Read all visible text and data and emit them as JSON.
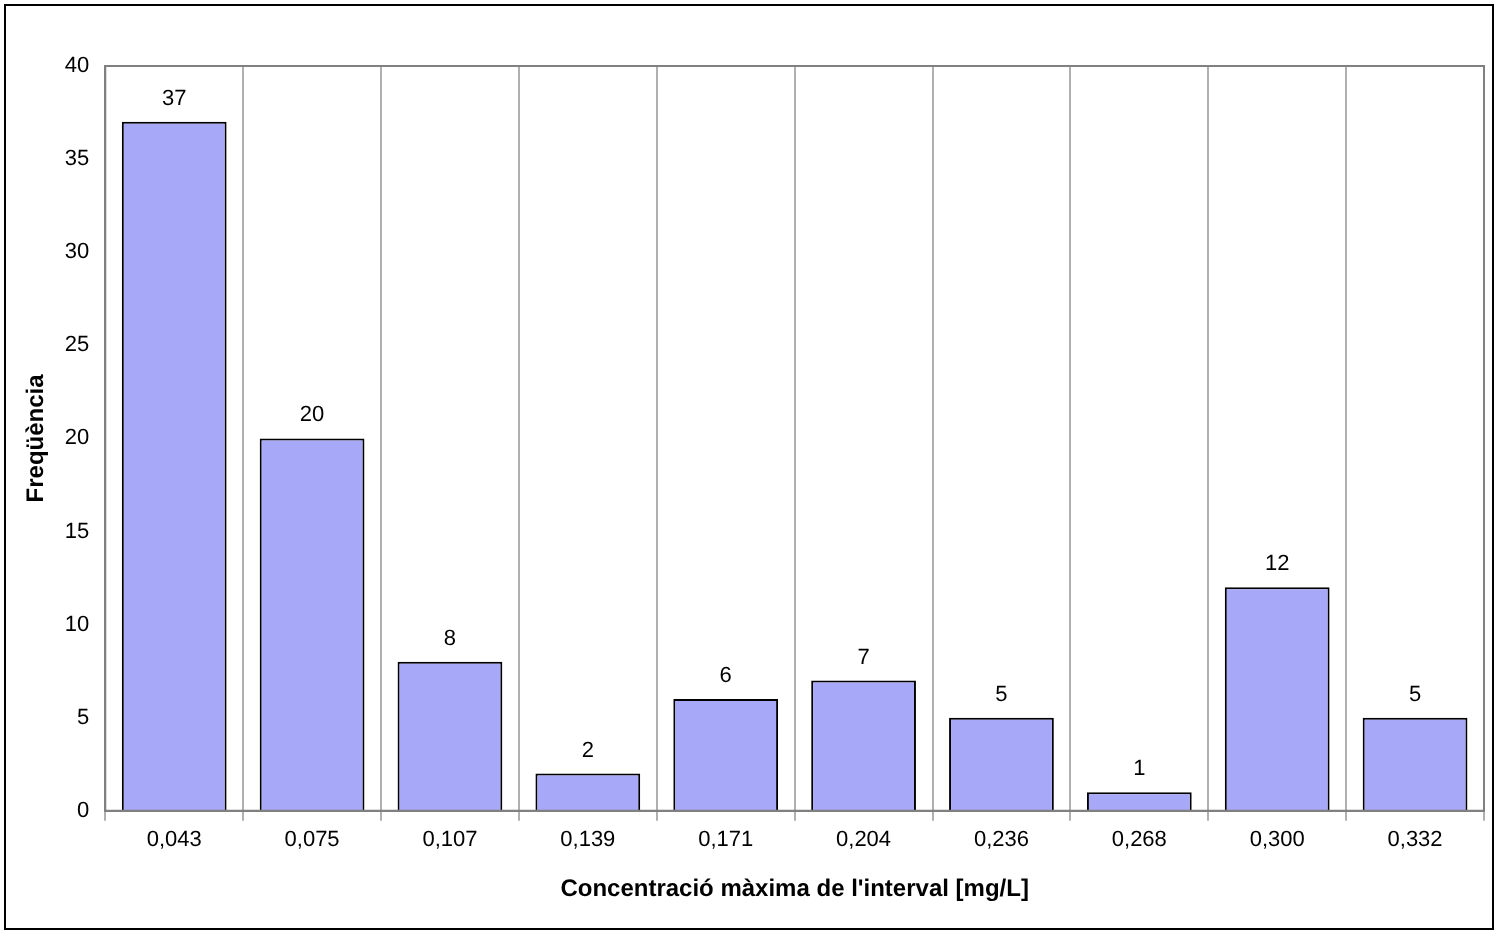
{
  "chart_data": {
    "type": "bar",
    "xlabel": "Concentració màxima de l'interval [mg/L]",
    "ylabel": "Freqüència",
    "categories": [
      "0,043",
      "0,075",
      "0,107",
      "0,139",
      "0,171",
      "0,204",
      "0,236",
      "0,268",
      "0,300",
      "0,332"
    ],
    "values": [
      37,
      20,
      8,
      2,
      6,
      7,
      5,
      1,
      12,
      5
    ],
    "color": "#a8a8f8",
    "ylim": [
      0,
      40
    ],
    "yticks": [
      0,
      5,
      10,
      15,
      20,
      25,
      30,
      35,
      40
    ],
    "grid": "x",
    "data_labels": true,
    "legend": false
  }
}
